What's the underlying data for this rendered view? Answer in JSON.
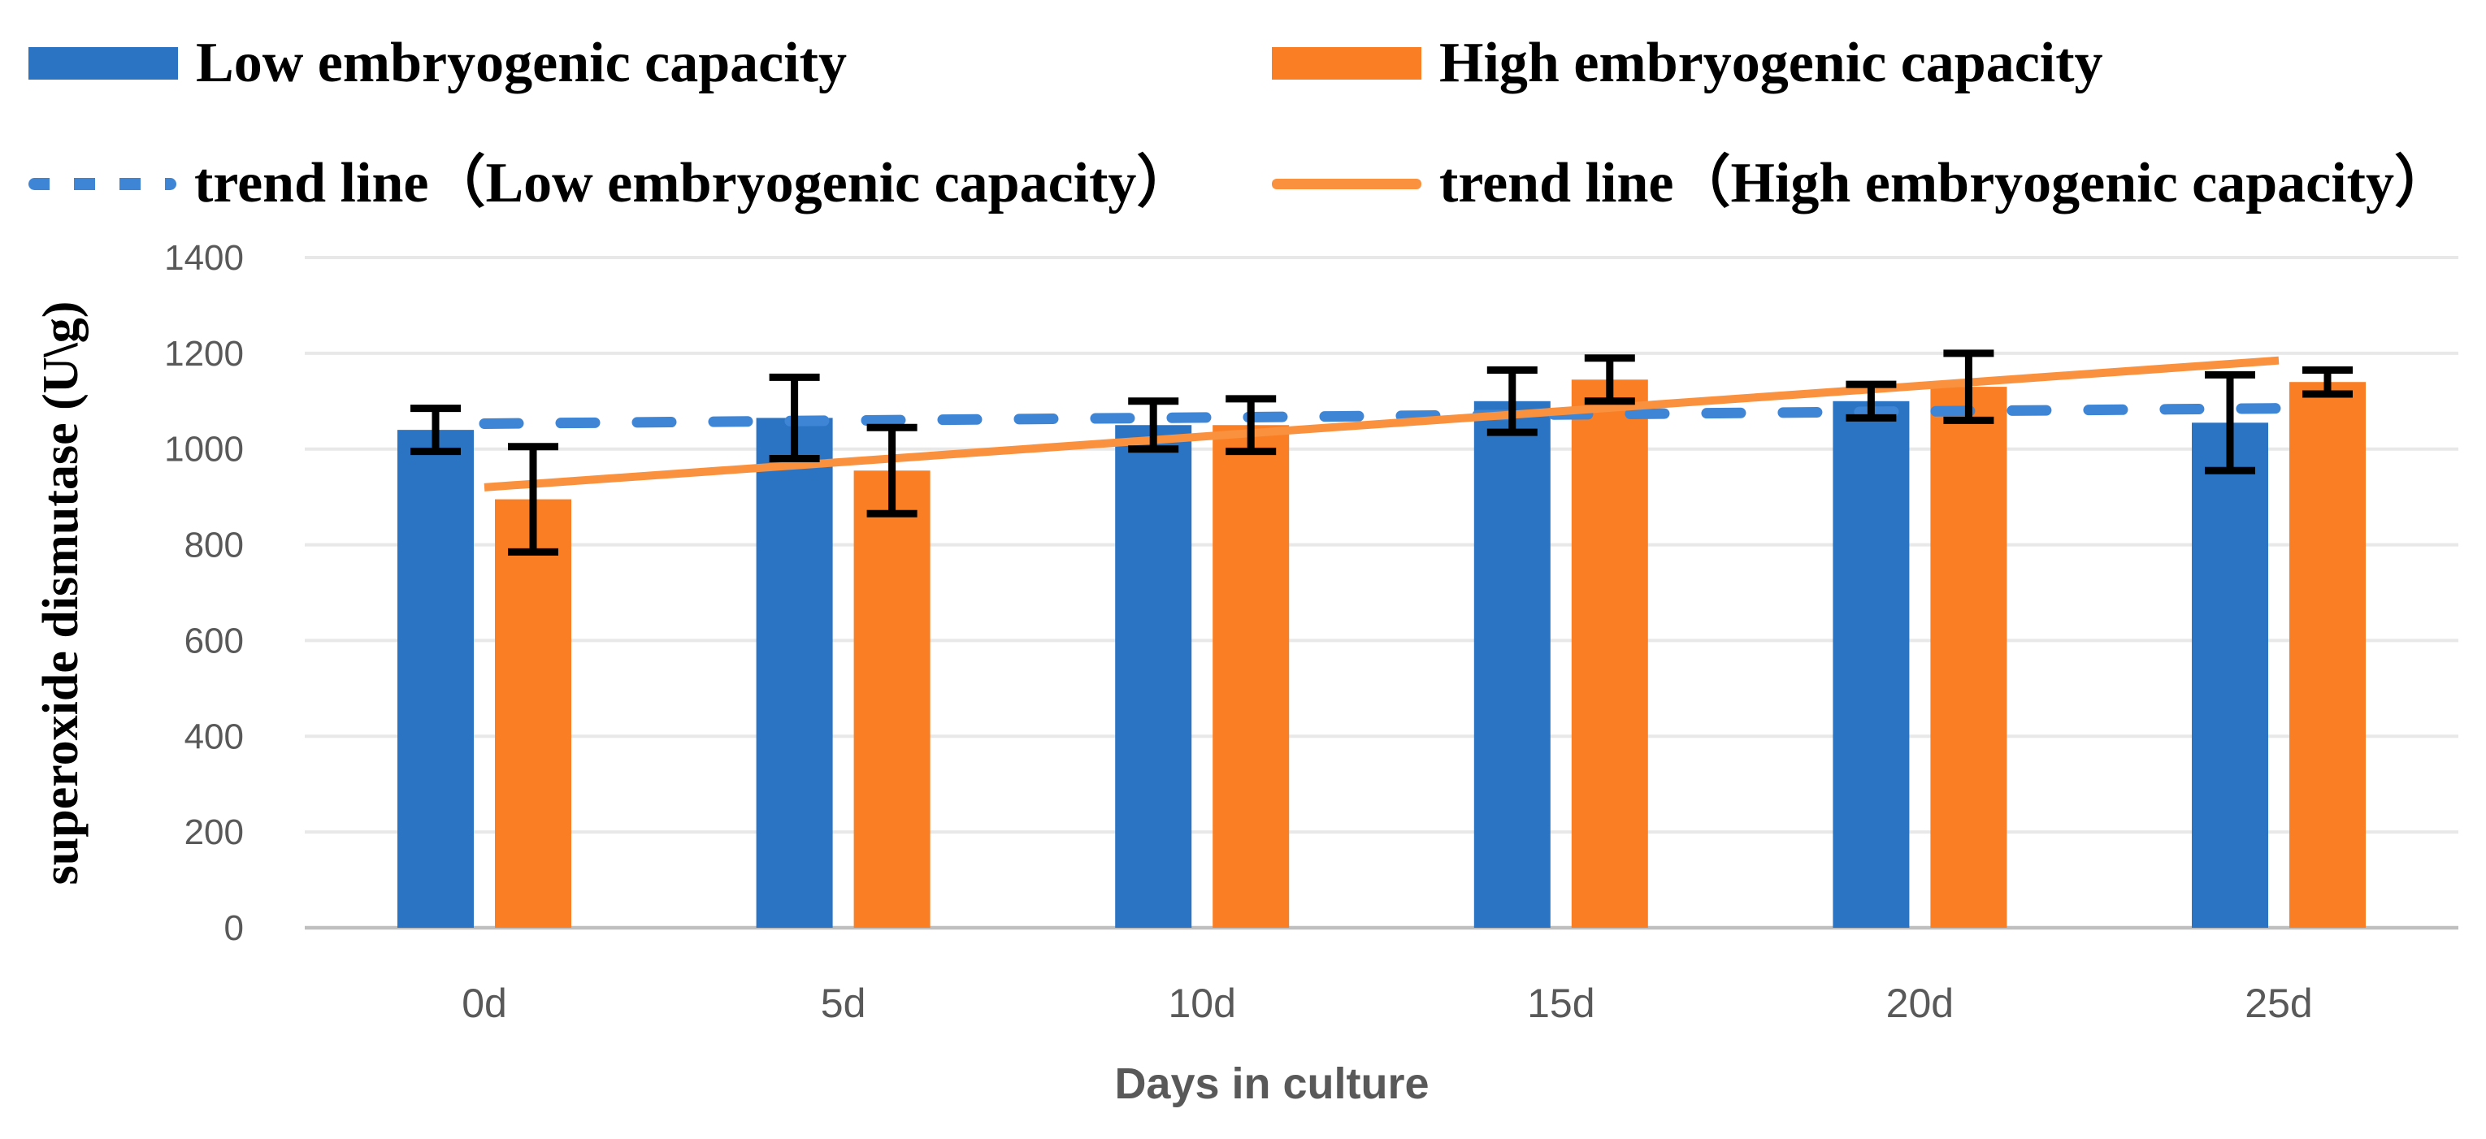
{
  "legend": {
    "items": [
      {
        "label": "Low embryogenic capacity",
        "type": "bar-swatch",
        "color": "#2B74C4"
      },
      {
        "label": "High embryogenic capacity",
        "type": "bar-swatch",
        "color": "#FA7E24"
      },
      {
        "label": "trend line（Low embryogenic capacity）",
        "type": "dashed-line",
        "color": "#3E85D6"
      },
      {
        "label": "trend line（High embryogenic capacity）",
        "type": "solid-line",
        "color": "#F9913E"
      }
    ]
  },
  "chart_data": {
    "type": "bar",
    "categories": [
      "0d",
      "5d",
      "10d",
      "15d",
      "20d",
      "25d"
    ],
    "series": [
      {
        "name": "Low embryogenic capacity",
        "color": "#2B74C4",
        "values": [
          1040,
          1065,
          1050,
          1100,
          1100,
          1055
        ],
        "errors": [
          45,
          85,
          50,
          65,
          35,
          100
        ]
      },
      {
        "name": "High embryogenic capacity",
        "color": "#FA7E24",
        "values": [
          895,
          955,
          1050,
          1145,
          1130,
          1140
        ],
        "errors": [
          110,
          90,
          55,
          45,
          70,
          25
        ]
      }
    ],
    "trendlines": [
      {
        "name": "trend line（Low embryogenic capacity）",
        "style": "dashed",
        "color": "#3E85D6",
        "value_at_first_category": 1053,
        "value_at_last_category": 1085
      },
      {
        "name": "trend line（High embryogenic capacity）",
        "style": "solid",
        "color": "#F9913E",
        "value_at_first_category": 920,
        "value_at_last_category": 1185
      }
    ],
    "title": "",
    "xlabel": "Days in culture",
    "ylabel": "superoxide dismutase (U\\g)",
    "ylim": [
      0,
      1400
    ],
    "y_ticks": [
      "0",
      "200",
      "400",
      "600",
      "800",
      "1000",
      "1200",
      "1400"
    ],
    "grid": true,
    "legend_position": "top",
    "style": {
      "gridline_color": "#E8E8E8",
      "baseline_color": "#BFBFBF",
      "tick_text_color": "#595959",
      "error_bar_color": "#000000"
    }
  }
}
